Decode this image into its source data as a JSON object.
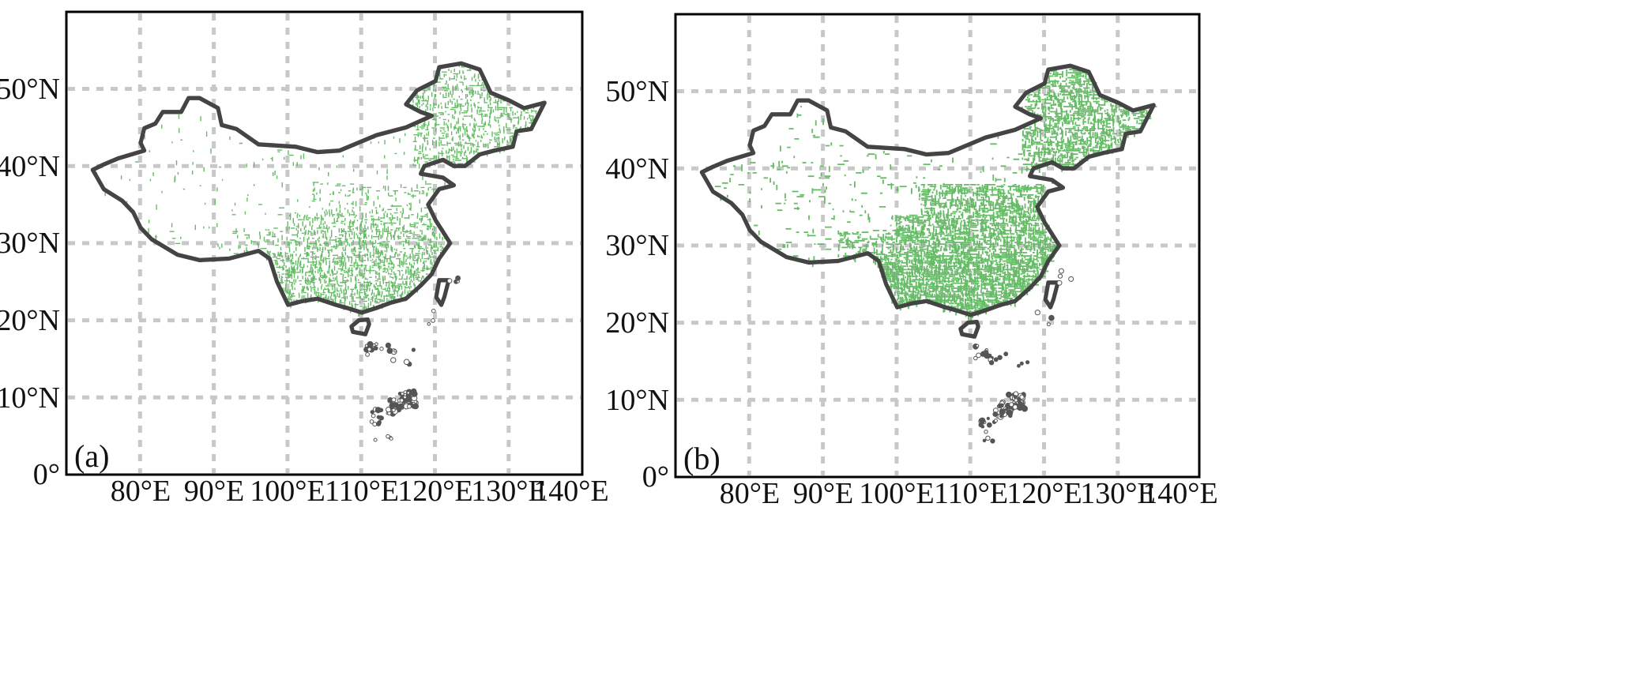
{
  "figure": {
    "panels": [
      {
        "label": "(a)"
      },
      {
        "label": "(b)"
      }
    ]
  },
  "map_axes": {
    "lon_ticks": [
      "80°E",
      "90°E",
      "100°E",
      "110°E",
      "120°E",
      "130°E",
      "140°E"
    ],
    "lat_ticks": [
      "0°",
      "10°N",
      "20°N",
      "30°N",
      "40°N",
      "50°N"
    ],
    "lon_values": [
      80,
      90,
      100,
      110,
      120,
      130,
      140
    ],
    "lat_values": [
      0,
      10,
      20,
      30,
      40,
      50
    ],
    "lon_range": [
      70,
      140
    ],
    "lat_range": [
      0,
      60
    ],
    "grid": "dotted"
  },
  "colors": {
    "border": "#444444",
    "gridline": "#cccccc",
    "fill": "#66bb66",
    "frame": "#000000"
  }
}
